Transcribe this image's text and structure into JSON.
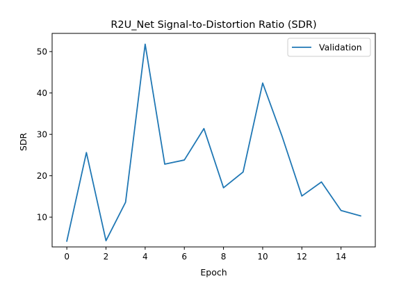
{
  "chart_data": {
    "type": "line",
    "title": "R2U_Net Signal-to-Distortion Ratio (SDR)",
    "xlabel": "Epoch",
    "ylabel": "SDR",
    "x": [
      0,
      1,
      2,
      3,
      4,
      5,
      6,
      7,
      8,
      9,
      10,
      11,
      12,
      13,
      14,
      15
    ],
    "series": [
      {
        "name": "Validation",
        "color": "#1f77b4",
        "values": [
          4.2,
          25.6,
          4.3,
          13.6,
          51.8,
          22.8,
          23.8,
          31.4,
          17.1,
          20.9,
          42.4,
          29.4,
          15.1,
          18.5,
          11.6,
          10.3
        ]
      }
    ],
    "xlim": [
      -0.75,
      15.75
    ],
    "ylim": [
      2.8,
      54.4
    ],
    "xticks": [
      0,
      2,
      4,
      6,
      8,
      10,
      12,
      14
    ],
    "yticks": [
      10,
      20,
      30,
      40,
      50
    ],
    "grid": false,
    "legend_position": "upper-right"
  }
}
